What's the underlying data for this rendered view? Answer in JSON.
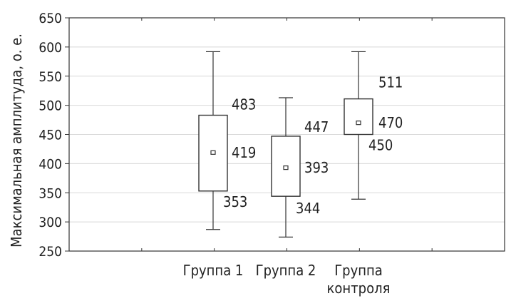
{
  "chart_data": {
    "type": "boxplot",
    "title": "",
    "xlabel": "",
    "ylabel": "Максимальная амплитуда, о. е.",
    "ylim": [
      250,
      650
    ],
    "yticks": [
      250,
      300,
      350,
      400,
      450,
      500,
      550,
      600,
      650
    ],
    "grid": "horizontal",
    "categories": [
      {
        "label_lines": [
          "Группа 1"
        ],
        "whisker_low": 287,
        "q1": 353,
        "median": 419,
        "q3": 483,
        "whisker_high": 592
      },
      {
        "label_lines": [
          "Группа 2"
        ],
        "whisker_low": 274,
        "q1": 344,
        "median": 393,
        "q3": 447,
        "whisker_high": 513
      },
      {
        "label_lines": [
          "Группа",
          "контроля"
        ],
        "whisker_low": 339,
        "q1": 450,
        "median": 470,
        "q3": 511,
        "whisker_high": 592
      }
    ],
    "data_labels": [
      {
        "box": 0,
        "stat": "q3",
        "text": "483"
      },
      {
        "box": 0,
        "stat": "median",
        "text": "419"
      },
      {
        "box": 0,
        "stat": "q1",
        "text": "353"
      },
      {
        "box": 1,
        "stat": "q3",
        "text": "447"
      },
      {
        "box": 1,
        "stat": "median",
        "text": "393"
      },
      {
        "box": 1,
        "stat": "q1",
        "text": "344"
      },
      {
        "box": 2,
        "stat": "q3",
        "text": "511"
      },
      {
        "box": 2,
        "stat": "median",
        "text": "470"
      },
      {
        "box": 2,
        "stat": "q1",
        "text": "450"
      }
    ],
    "colors": {
      "grid": "#d8d8d8",
      "axis": "#333333",
      "box": "#333333"
    }
  }
}
